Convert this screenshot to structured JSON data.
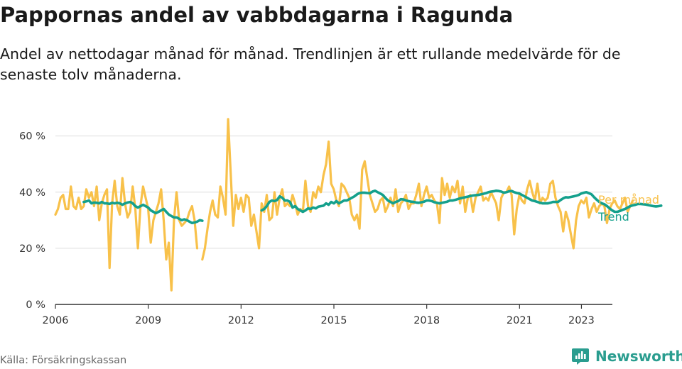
{
  "title": "Pappornas andel av vabbdagarna i Ragunda",
  "subtitle": "Andel av nettodagar månad för månad. Trendlinjen är ett rullande medelvärde för de senaste tolv månaderna.",
  "source": "Källa: Försäkringskassan",
  "brand": "Newsworthy",
  "colors": {
    "monthly": "#f8c14a",
    "trend": "#14a08c",
    "grid": "#dddddd",
    "axis": "#333333"
  },
  "chart_data": {
    "type": "line",
    "xlabel": "",
    "ylabel": "",
    "xlim": [
      2006.0,
      2024.0
    ],
    "ylim": [
      0,
      0.68
    ],
    "y_ticks": [
      0,
      0.2,
      0.4,
      0.6
    ],
    "y_tick_labels": [
      "0 %",
      "20 %",
      "40 %",
      "60 %"
    ],
    "x_ticks": [
      2006,
      2009,
      2012,
      2015,
      2018,
      2021,
      2023
    ],
    "x_tick_labels": [
      "2006",
      "2009",
      "2012",
      "2015",
      "2018",
      "2021",
      "2023"
    ],
    "x_tick_positions": [
      2006.0,
      2009.0,
      2012.0,
      2015.0,
      2018.0,
      2021.0,
      2023.0
    ],
    "series": [
      {
        "name": "Per månad",
        "start": 2006.0,
        "step": 0.0833,
        "values": [
          0.32,
          0.34,
          0.38,
          0.39,
          0.34,
          0.34,
          0.42,
          0.35,
          0.34,
          0.38,
          0.34,
          0.35,
          0.41,
          0.38,
          0.4,
          0.35,
          0.42,
          0.3,
          0.36,
          0.39,
          0.41,
          0.13,
          0.36,
          0.44,
          0.35,
          0.32,
          0.45,
          0.36,
          0.31,
          0.33,
          0.42,
          0.34,
          0.2,
          0.35,
          0.42,
          0.38,
          0.34,
          0.22,
          0.3,
          0.33,
          0.36,
          0.41,
          0.3,
          0.16,
          0.22,
          0.05,
          0.3,
          0.4,
          0.3,
          0.28,
          0.29,
          0.3,
          0.33,
          0.35,
          0.3,
          0.2,
          null,
          0.16,
          0.2,
          0.27,
          0.33,
          0.37,
          0.32,
          0.31,
          0.42,
          0.38,
          0.32,
          0.66,
          0.47,
          0.28,
          0.39,
          0.34,
          0.38,
          0.33,
          0.39,
          0.38,
          0.28,
          0.32,
          0.26,
          0.2,
          0.36,
          0.33,
          0.39,
          0.3,
          0.31,
          0.4,
          0.32,
          0.38,
          0.41,
          0.35,
          0.36,
          0.35,
          0.39,
          0.36,
          0.32,
          0.34,
          0.33,
          0.44,
          0.35,
          0.33,
          0.4,
          0.38,
          0.42,
          0.4,
          0.46,
          0.5,
          0.58,
          0.43,
          0.41,
          0.37,
          0.35,
          0.43,
          0.42,
          0.4,
          0.38,
          0.32,
          0.3,
          0.32,
          0.27,
          0.48,
          0.51,
          0.45,
          0.39,
          0.36,
          0.33,
          0.34,
          0.37,
          0.38,
          0.33,
          0.35,
          0.38,
          0.35,
          0.41,
          0.33,
          0.36,
          0.37,
          0.39,
          0.34,
          0.36,
          0.36,
          0.39,
          0.43,
          0.35,
          0.39,
          0.42,
          0.38,
          0.39,
          0.37,
          0.36,
          0.29,
          0.45,
          0.39,
          0.43,
          0.38,
          0.42,
          0.4,
          0.44,
          0.36,
          0.42,
          0.33,
          0.38,
          0.39,
          0.33,
          0.38,
          0.4,
          0.42,
          0.37,
          0.38,
          0.37,
          0.4,
          0.38,
          0.36,
          0.3,
          0.38,
          0.4,
          0.4,
          0.42,
          0.39,
          0.25,
          0.34,
          0.39,
          0.37,
          0.36,
          0.41,
          0.44,
          0.4,
          0.37,
          0.43,
          0.36,
          0.38,
          0.37,
          0.38,
          0.43,
          0.44,
          0.38,
          0.35,
          0.33,
          0.26,
          0.33,
          0.3,
          0.25,
          0.2,
          0.3,
          0.35,
          0.37,
          0.36,
          0.38,
          0.31,
          0.34,
          0.36,
          0.33,
          0.35,
          0.36,
          0.35,
          0.29,
          0.34,
          0.36,
          0.37,
          0.35,
          0.34,
          0.36,
          0.38,
          0.33,
          0.35,
          0.37
        ]
      },
      {
        "name": "Trend",
        "start": 2006.917,
        "step": 0.0833,
        "values": [
          0.365,
          0.367,
          0.37,
          0.36,
          0.363,
          0.362,
          0.36,
          0.365,
          0.36,
          0.36,
          0.358,
          0.362,
          0.36,
          0.362,
          0.36,
          0.355,
          0.36,
          0.363,
          0.365,
          0.36,
          0.35,
          0.345,
          0.35,
          0.355,
          0.35,
          0.345,
          0.335,
          0.33,
          0.325,
          0.33,
          0.335,
          0.34,
          0.33,
          0.32,
          0.315,
          0.31,
          0.31,
          0.305,
          0.3,
          0.303,
          0.3,
          0.295,
          0.29,
          0.292,
          0.295,
          0.3,
          0.298,
          null,
          null,
          null,
          null,
          null,
          null,
          null,
          null,
          null,
          null,
          null,
          null,
          null,
          null,
          null,
          null,
          null,
          null,
          null,
          null,
          null,
          null,
          0.335,
          0.34,
          0.35,
          0.365,
          0.37,
          0.368,
          0.372,
          0.385,
          0.38,
          0.37,
          0.37,
          0.365,
          0.345,
          0.35,
          0.34,
          0.335,
          0.33,
          0.335,
          0.342,
          0.34,
          0.345,
          0.342,
          0.348,
          0.35,
          0.352,
          0.36,
          0.355,
          0.365,
          0.36,
          0.368,
          0.36,
          0.365,
          0.37,
          0.37,
          0.375,
          0.38,
          0.385,
          0.392,
          0.397,
          0.398,
          0.398,
          0.397,
          0.396,
          0.402,
          0.405,
          0.4,
          0.395,
          0.39,
          0.38,
          0.37,
          0.365,
          0.36,
          0.365,
          0.368,
          0.375,
          0.374,
          0.37,
          0.368,
          0.366,
          0.365,
          0.363,
          0.362,
          0.364,
          0.366,
          0.37,
          0.37,
          0.368,
          0.364,
          0.362,
          0.36,
          0.362,
          0.364,
          0.366,
          0.37,
          0.37,
          0.372,
          0.375,
          0.378,
          0.38,
          0.382,
          0.384,
          0.386,
          0.388,
          0.389,
          0.39,
          0.392,
          0.394,
          0.396,
          0.4,
          0.402,
          0.403,
          0.405,
          0.404,
          0.402,
          0.398,
          0.4,
          0.403,
          0.404,
          0.4,
          0.397,
          0.395,
          0.39,
          0.385,
          0.38,
          0.375,
          0.37,
          0.368,
          0.365,
          0.362,
          0.36,
          0.36,
          0.36,
          0.362,
          0.365,
          0.365,
          0.365,
          0.372,
          0.378,
          0.382,
          0.381,
          0.383,
          0.385,
          0.387,
          0.39,
          0.395,
          0.398,
          0.4,
          0.396,
          0.392,
          0.382,
          0.373,
          0.365,
          0.36,
          0.357,
          0.35,
          0.342,
          0.335,
          0.33,
          0.33,
          0.333,
          0.337,
          0.34,
          0.345,
          0.35,
          0.353,
          0.355,
          0.358,
          0.358,
          0.357,
          0.356,
          0.354,
          0.352,
          0.35,
          0.349,
          0.35,
          0.352
        ]
      }
    ],
    "legend": "right"
  }
}
